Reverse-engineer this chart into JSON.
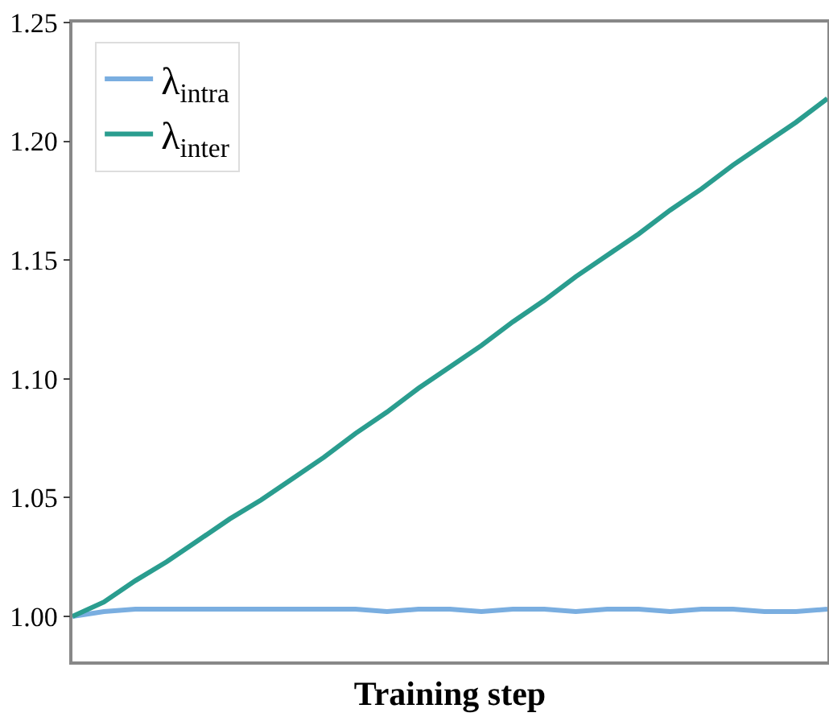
{
  "chart_data": {
    "type": "line",
    "xlabel": "Training step",
    "categories": [
      null,
      null,
      null,
      null,
      null,
      null,
      null,
      null,
      null,
      null,
      null,
      null,
      null,
      null,
      null,
      null,
      null,
      null,
      null,
      null,
      null,
      null,
      null,
      null,
      null
    ],
    "series": [
      {
        "name": "λ$_{intra}$",
        "color": "#7aaee0",
        "values": [
          1.0,
          1.002,
          1.003,
          1.003,
          1.003,
          1.003,
          1.003,
          1.003,
          1.003,
          1.003,
          1.002,
          1.003,
          1.003,
          1.002,
          1.003,
          1.003,
          1.002,
          1.003,
          1.003,
          1.002,
          1.003,
          1.003,
          1.002,
          1.002,
          1.003
        ]
      },
      {
        "name": "λ$_{inter}$",
        "color": "#2a9d8f",
        "values": [
          1.0,
          1.006,
          1.015,
          1.023,
          1.032,
          1.041,
          1.049,
          1.058,
          1.067,
          1.077,
          1.086,
          1.096,
          1.105,
          1.114,
          1.124,
          1.133,
          1.143,
          1.152,
          1.161,
          1.171,
          1.18,
          1.19,
          1.199,
          1.208,
          1.218
        ]
      }
    ],
    "ylim": [
      0.981,
      1.25
    ],
    "yticks": [
      {
        "value": 1.0,
        "label": "1.00"
      },
      {
        "value": 1.05,
        "label": "1.05"
      },
      {
        "value": 1.1,
        "label": "1.10"
      },
      {
        "value": 1.15,
        "label": "1.15"
      },
      {
        "value": 1.2,
        "label": "1.20"
      },
      {
        "value": 1.25,
        "label": "1.25"
      }
    ],
    "grid": false,
    "legend": "top left",
    "marker": "none",
    "line_style": "solid"
  }
}
